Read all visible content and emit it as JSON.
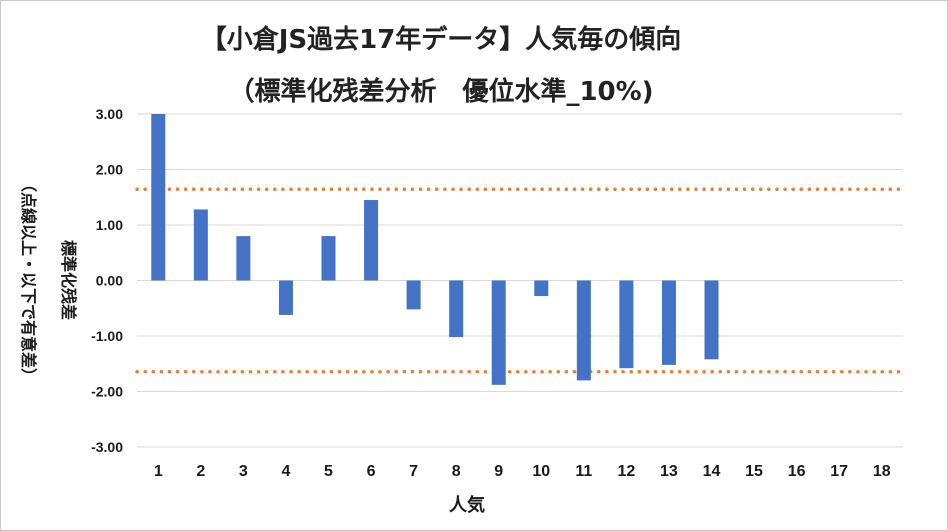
{
  "chart_data": {
    "type": "bar",
    "title": "【小倉JS過去17年データ】人気毎の傾向",
    "subtitle": "（標準化残差分析　優位水準_10%)",
    "xlabel": "人気",
    "ylabel": "標準化残差",
    "ylabel_note": "（点線以上・以下で有意差）",
    "categories": [
      "1",
      "2",
      "3",
      "4",
      "5",
      "6",
      "7",
      "8",
      "9",
      "10",
      "11",
      "12",
      "13",
      "14",
      "15",
      "16",
      "17",
      "18"
    ],
    "series": [
      {
        "values": [
          3.0,
          1.28,
          0.8,
          -0.62,
          0.8,
          1.45,
          -0.52,
          -1.02,
          -1.88,
          -0.28,
          -1.8,
          -1.58,
          -1.52,
          -1.42,
          null,
          null,
          null,
          null
        ]
      }
    ],
    "y_ticks": [
      "3.00",
      "2.00",
      "1.00",
      "0.00",
      "-1.00",
      "-2.00",
      "-3.00"
    ],
    "ylim": [
      -3,
      3
    ],
    "thresholds": [
      1.645,
      -1.645
    ],
    "grid": true,
    "colors": {
      "bar": "#4472c4",
      "threshold": "#ed7d31",
      "grid": "#d9d9d9"
    }
  }
}
